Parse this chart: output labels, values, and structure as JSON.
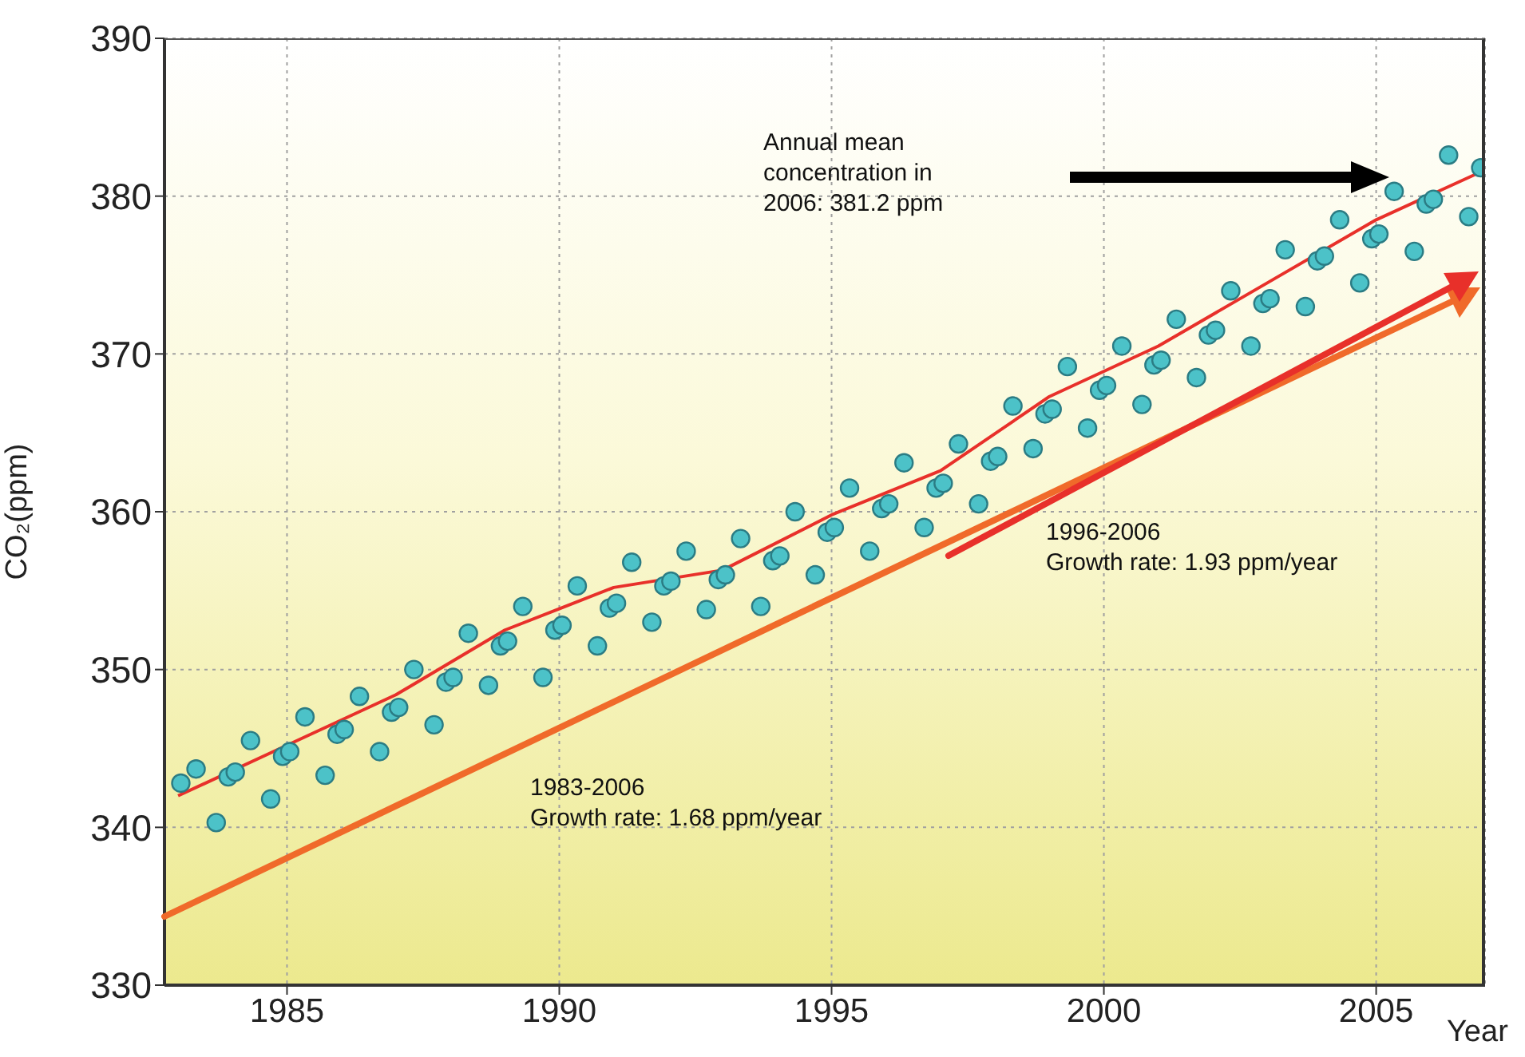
{
  "chart_data": {
    "type": "scatter",
    "ylabel": "CO₂(ppm)",
    "xlabel": "Year",
    "xlim": [
      1982.75,
      2007
    ],
    "xticks": [
      1985,
      1990,
      1995,
      2000,
      2005
    ],
    "ylim": [
      330,
      390
    ],
    "yticks": [
      330,
      340,
      350,
      360,
      370,
      380,
      390
    ],
    "grid": true,
    "annotations": [
      "Annual mean\nconcentration in\n2006: 381.2 ppm",
      "1983-2006\nGrowth rate: 1.68 ppm/year",
      "1996-2006\nGrowth rate: 1.93 ppm/year"
    ],
    "series": [
      {
        "marker": "circle",
        "color": "#4cc2c8",
        "x": [
          1983.05,
          1983.33,
          1983.7,
          1983.92,
          1984.05,
          1984.33,
          1984.7,
          1984.92,
          1985.05,
          1985.33,
          1985.7,
          1985.92,
          1986.05,
          1986.33,
          1986.7,
          1986.92,
          1987.05,
          1987.33,
          1987.7,
          1987.92,
          1988.05,
          1988.33,
          1988.7,
          1988.92,
          1989.05,
          1989.33,
          1989.7,
          1989.92,
          1990.05,
          1990.33,
          1990.7,
          1990.92,
          1991.05,
          1991.33,
          1991.7,
          1991.92,
          1992.05,
          1992.33,
          1992.7,
          1992.92,
          1993.05,
          1993.33,
          1993.7,
          1993.92,
          1994.05,
          1994.33,
          1994.7,
          1994.92,
          1995.05,
          1995.33,
          1995.7,
          1995.92,
          1996.05,
          1996.33,
          1996.7,
          1996.92,
          1997.05,
          1997.33,
          1997.7,
          1997.92,
          1998.05,
          1998.33,
          1998.7,
          1998.92,
          1999.05,
          1999.33,
          1999.7,
          1999.92,
          2000.05,
          2000.33,
          2000.7,
          2000.92,
          2001.05,
          2001.33,
          2001.7,
          2001.92,
          2002.05,
          2002.33,
          2002.7,
          2002.92,
          2003.05,
          2003.33,
          2003.7,
          2003.92,
          2004.05,
          2004.33,
          2004.7,
          2004.92,
          2005.05,
          2005.33,
          2005.7,
          2005.92,
          2006.05,
          2006.33,
          2006.7,
          2006.92
        ],
        "values": [
          342.8,
          343.7,
          340.3,
          343.2,
          343.5,
          345.5,
          341.8,
          344.5,
          344.8,
          347.0,
          343.3,
          345.9,
          346.2,
          348.3,
          344.8,
          347.3,
          347.6,
          350.0,
          346.5,
          349.2,
          349.5,
          352.3,
          349.0,
          351.5,
          351.8,
          354.0,
          349.5,
          352.5,
          352.8,
          355.3,
          351.5,
          353.9,
          354.2,
          356.8,
          353.0,
          355.3,
          355.6,
          357.5,
          353.8,
          355.7,
          356.0,
          358.3,
          354.0,
          356.9,
          357.2,
          360.0,
          356.0,
          358.7,
          359.0,
          361.5,
          357.5,
          360.2,
          360.5,
          363.1,
          359.0,
          361.5,
          361.8,
          364.3,
          360.5,
          363.2,
          363.5,
          366.7,
          364.0,
          366.2,
          366.5,
          369.2,
          365.3,
          367.7,
          368.0,
          370.5,
          366.8,
          369.3,
          369.6,
          372.2,
          368.5,
          371.2,
          371.5,
          374.0,
          370.5,
          373.2,
          373.5,
          376.6,
          373.0,
          375.9,
          376.2,
          378.5,
          374.5,
          377.3,
          377.6,
          380.3,
          376.5,
          379.5,
          379.8,
          382.6,
          378.7,
          381.8
        ]
      },
      {
        "type": "line",
        "color": "#e8302a",
        "x": [
          1983,
          1985,
          1987,
          1989,
          1991,
          1993,
          1995,
          1997,
          1999,
          2001,
          2003,
          2005,
          2006.9
        ],
        "values": [
          342.0,
          345.2,
          348.4,
          352.5,
          355.2,
          356.3,
          359.8,
          362.6,
          367.3,
          370.5,
          374.5,
          378.5,
          381.5
        ]
      }
    ]
  }
}
